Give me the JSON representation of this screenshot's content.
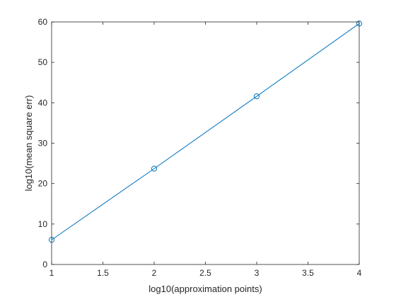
{
  "chart_data": {
    "type": "line",
    "title": "",
    "xlabel": "log10(approximation points)",
    "ylabel": "log10(mean square err)",
    "xlim": [
      1,
      4
    ],
    "ylim": [
      0,
      60
    ],
    "x_ticks": [
      "1",
      "1.5",
      "2",
      "2.5",
      "3",
      "3.5",
      "4"
    ],
    "y_ticks": [
      "0",
      "10",
      "20",
      "30",
      "40",
      "50",
      "60"
    ],
    "grid": false,
    "legend": "none",
    "series": [
      {
        "x": [
          1,
          2,
          3,
          4
        ],
        "y": [
          6.1,
          23.7,
          41.6,
          59.6
        ],
        "marker": "circle",
        "color": "#0072BD"
      }
    ]
  }
}
